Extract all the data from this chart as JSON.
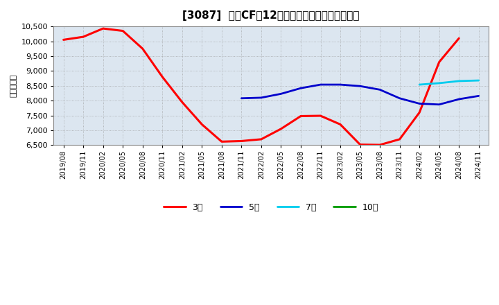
{
  "title": "[3087]  営業CFだ12か月移動合計の平均値の推移",
  "ylabel": "（百万円）",
  "ylim": [
    6500,
    10500
  ],
  "yticks": [
    6500,
    7000,
    7500,
    8000,
    8500,
    9000,
    9500,
    10000,
    10500
  ],
  "background_color": "#ffffff",
  "plot_bg_color": "#dce6f0",
  "grid_color": "#999999",
  "legend": [
    "3年",
    "5年",
    "7年",
    "10年"
  ],
  "line_colors": [
    "#ff0000",
    "#0000cc",
    "#00ccee",
    "#009900"
  ],
  "x_labels": [
    "2019/08",
    "2019/11",
    "2020/02",
    "2020/05",
    "2020/08",
    "2020/11",
    "2021/02",
    "2021/05",
    "2021/08",
    "2021/11",
    "2022/02",
    "2022/05",
    "2022/08",
    "2022/11",
    "2023/02",
    "2023/05",
    "2023/08",
    "2023/11",
    "2024/02",
    "2024/05",
    "2024/08",
    "2024/11"
  ],
  "series_3y": [
    10050,
    10150,
    10430,
    10350,
    9750,
    8800,
    7950,
    7200,
    6620,
    6640,
    6700,
    7050,
    7480,
    7490,
    7200,
    6520,
    6510,
    6700,
    7600,
    9300,
    10100,
    null
  ],
  "series_5y": [
    null,
    null,
    null,
    null,
    null,
    null,
    null,
    null,
    null,
    8080,
    8100,
    8230,
    8420,
    8540,
    8540,
    8490,
    8370,
    8080,
    7900,
    7870,
    8050,
    8160
  ],
  "series_7y": [
    null,
    null,
    null,
    null,
    null,
    null,
    null,
    null,
    null,
    null,
    null,
    null,
    null,
    null,
    null,
    null,
    null,
    null,
    8540,
    8590,
    8660,
    8680
  ],
  "series_10y": [
    null,
    null,
    null,
    null,
    null,
    null,
    null,
    null,
    null,
    null,
    null,
    null,
    null,
    null,
    null,
    null,
    null,
    null,
    null,
    null,
    null,
    null
  ]
}
